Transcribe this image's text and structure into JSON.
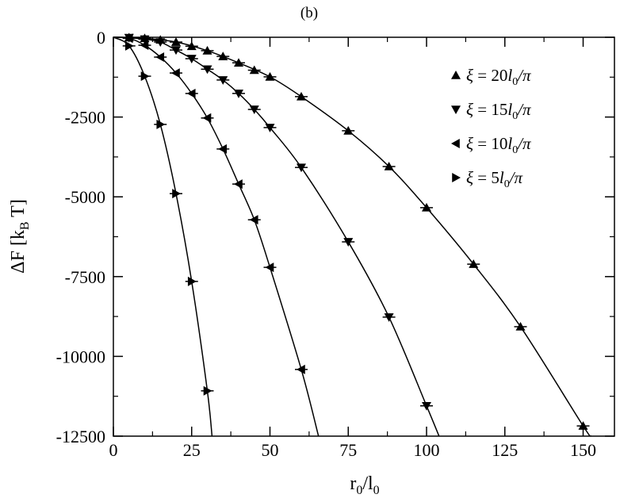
{
  "chart_data": {
    "type": "line",
    "title": "(b)",
    "xlabel": "r_0/l_0",
    "ylabel": "ΔF [k_B T]",
    "xlim": [
      0,
      160
    ],
    "ylim": [
      -12500,
      0
    ],
    "xticks": [
      0,
      25,
      50,
      75,
      100,
      125,
      150
    ],
    "xtick_labels": [
      "0",
      "25",
      "50",
      "75",
      "100",
      "125",
      "150"
    ],
    "yticks": [
      0,
      -2500,
      -5000,
      -7500,
      -10000,
      -12500
    ],
    "ytick_labels": [
      "0",
      "-2500",
      "-5000",
      "-7500",
      "-10000",
      "-12500"
    ],
    "grid": false,
    "legend_position": "top-right",
    "series": [
      {
        "name": "ξ = 20l0/π",
        "legend": {
          "prefix": "ξ = 20",
          "l": "l",
          "sub": "0",
          "suffix": "/π"
        },
        "marker": "triangle-up",
        "x": [
          5,
          10,
          15,
          20,
          25,
          30,
          35,
          40,
          45,
          50,
          60,
          75,
          88,
          100,
          115,
          130,
          150
        ],
        "y": [
          -10,
          -30,
          -80,
          -150,
          -280,
          -420,
          -600,
          -800,
          -1030,
          -1240,
          -1860,
          -2930,
          -4050,
          -5340,
          -7110,
          -9070,
          -12180
        ],
        "fit_x": [
          0,
          5,
          10,
          20,
          30,
          40,
          50,
          60,
          75,
          88,
          100,
          115,
          130,
          150,
          152.5
        ],
        "fit_y": [
          0,
          -10,
          -30,
          -150,
          -420,
          -800,
          -1240,
          -1860,
          -2930,
          -4050,
          -5340,
          -7110,
          -9070,
          -12180,
          -12500
        ]
      },
      {
        "name": "ξ = 15l0/π",
        "legend": {
          "prefix": "ξ = 15",
          "l": "l",
          "sub": "0",
          "suffix": "/π"
        },
        "marker": "triangle-down",
        "x": [
          5,
          10,
          15,
          20,
          25,
          30,
          35,
          40,
          45,
          50,
          60,
          75,
          88,
          100
        ],
        "y": [
          -15,
          -60,
          -150,
          -400,
          -670,
          -1000,
          -1340,
          -1760,
          -2260,
          -2830,
          -4080,
          -6410,
          -8770,
          -11550
        ],
        "fit_x": [
          0,
          5,
          10,
          15,
          20,
          25,
          30,
          35,
          40,
          45,
          50,
          60,
          75,
          88,
          100,
          104
        ],
        "fit_y": [
          0,
          -15,
          -60,
          -150,
          -400,
          -670,
          -1000,
          -1340,
          -1760,
          -2260,
          -2830,
          -4080,
          -6410,
          -8770,
          -11550,
          -12500
        ]
      },
      {
        "name": "ξ = 10l0/π",
        "legend": {
          "prefix": "ξ = 10",
          "l": "l",
          "sub": "0",
          "suffix": "/π"
        },
        "marker": "triangle-left",
        "x": [
          5,
          10,
          15,
          20,
          25,
          30,
          35,
          40,
          45,
          50,
          60
        ],
        "y": [
          -30,
          -250,
          -620,
          -1120,
          -1760,
          -2530,
          -3500,
          -4600,
          -5720,
          -7210,
          -10410
        ],
        "fit_x": [
          0,
          5,
          10,
          15,
          20,
          25,
          30,
          35,
          40,
          45,
          50,
          60,
          65.5
        ],
        "fit_y": [
          0,
          -30,
          -250,
          -620,
          -1120,
          -1760,
          -2530,
          -3500,
          -4600,
          -5720,
          -7210,
          -10410,
          -12500
        ]
      },
      {
        "name": "ξ = 5l0/π",
        "legend": {
          "prefix": "ξ = 5",
          "l": "l",
          "sub": "0",
          "suffix": "/π"
        },
        "marker": "triangle-right",
        "x": [
          5,
          10,
          15,
          20,
          25,
          30
        ],
        "y": [
          -270,
          -1220,
          -2730,
          -4900,
          -7650,
          -11080
        ],
        "fit_x": [
          0,
          5,
          10,
          15,
          20,
          25,
          30,
          31.5
        ],
        "fit_y": [
          0,
          -270,
          -1220,
          -2730,
          -4900,
          -7650,
          -11080,
          -12500
        ]
      }
    ]
  }
}
